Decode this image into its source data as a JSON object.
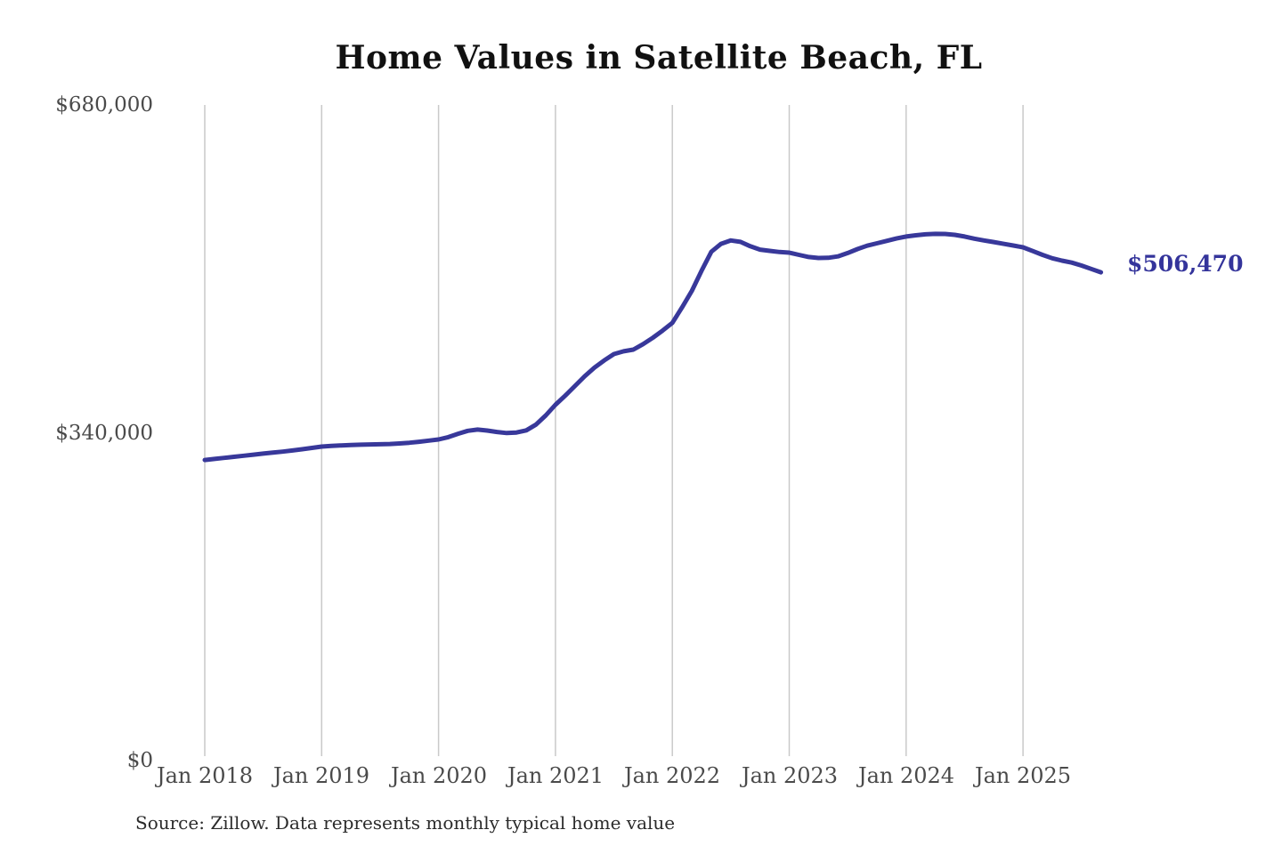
{
  "page": {
    "background": "#ffffff"
  },
  "chart": {
    "title": "Home Values in Satellite Beach, FL",
    "source_note": "Source: Zillow. Data represents monthly typical home value",
    "end_label": "$506,470",
    "colors": {
      "line": "#38389a",
      "end_label": "#34349b",
      "grid": "#c9c9c9",
      "axis_text": "#4a4a4a",
      "title_text": "#111111",
      "source_text": "#2b2b2b"
    }
  },
  "chart_data": {
    "type": "line",
    "title": "Home Values in Satellite Beach, FL",
    "xlabel": "",
    "ylabel": "",
    "x_start": "2018-01",
    "x_end": "2025-09",
    "x_interval": "monthly",
    "x_tick_labels": [
      "Jan 2018",
      "Jan 2019",
      "Jan 2020",
      "Jan 2021",
      "Jan 2022",
      "Jan 2023",
      "Jan 2024",
      "Jan 2025"
    ],
    "y_ticks": [
      0,
      340000,
      680000
    ],
    "y_tick_labels": [
      "$0",
      "$340,000",
      "$680,000"
    ],
    "ylim": [
      0,
      680000
    ],
    "grid": "vertical-only",
    "legend": "none",
    "final_value": 506470,
    "series": [
      {
        "name": "Typical home value",
        "unit": "USD",
        "monthly_values": [
          311800,
          312900,
          314000,
          315100,
          316200,
          317300,
          318400,
          319400,
          320400,
          321600,
          322900,
          324300,
          325700,
          326400,
          326900,
          327300,
          327600,
          327900,
          328100,
          328400,
          328900,
          329700,
          330700,
          331900,
          333100,
          335500,
          339000,
          342000,
          343300,
          342300,
          340800,
          339700,
          340300,
          342500,
          348500,
          358000,
          369100,
          378500,
          388500,
          398600,
          407500,
          415000,
          421700,
          424500,
          426300,
          432000,
          438500,
          446000,
          454000,
          470000,
          487200,
          508000,
          527800,
          536000,
          539500,
          538000,
          533500,
          530000,
          528700,
          527500,
          526800,
          524500,
          522300,
          521300,
          521500,
          523000,
          526500,
          530500,
          534000,
          536500,
          539000,
          541500,
          543500,
          544800,
          545800,
          546300,
          546200,
          545300,
          543500,
          541300,
          539500,
          537800,
          536000,
          534200,
          532400,
          528500,
          524500,
          521000,
          518500,
          516500,
          513500,
          510000,
          506470
        ]
      }
    ]
  }
}
